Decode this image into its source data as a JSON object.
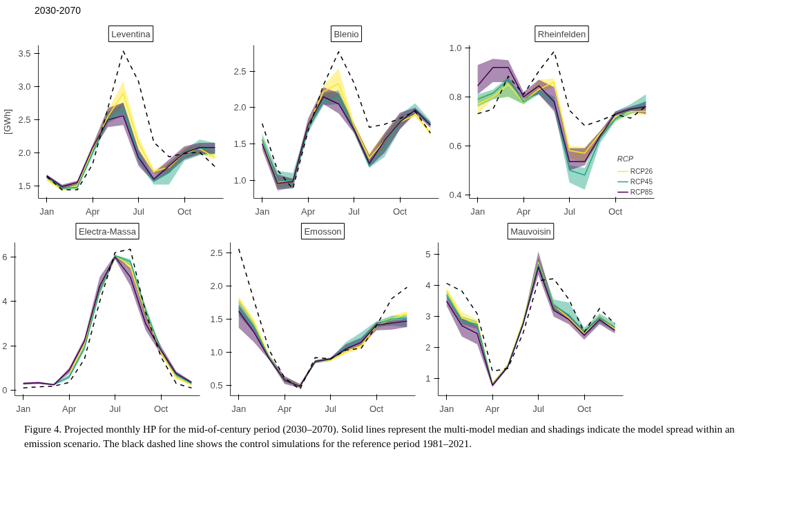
{
  "chart_data": [
    {
      "type": "line",
      "title": "Leventina",
      "ylabel": "[GWh]",
      "annotations": [
        "2030-2070"
      ],
      "grid": false,
      "categories": [
        "Jan",
        null,
        null,
        "Apr",
        null,
        null,
        "Jul",
        null,
        null,
        "Oct",
        null,
        null
      ],
      "ylim": [
        1.31,
        3.63
      ],
      "yticks": [
        1.5,
        {
          "value": 2,
          "label": "2.0"
        },
        2.5,
        {
          "value": 3,
          "label": "3.0"
        },
        3.5
      ],
      "series": [
        {
          "color": "#fde725",
          "values": [
            1.6,
            1.44,
            1.5,
            2.05,
            2.55,
            2.9,
            2.15,
            1.72,
            1.78,
            2.0,
            2.06,
            1.93
          ],
          "lower": [
            1.57,
            1.42,
            1.46,
            2.0,
            2.45,
            2.7,
            2.0,
            1.68,
            1.7,
            1.93,
            1.98,
            1.9
          ],
          "upper": [
            1.66,
            1.48,
            1.55,
            2.1,
            2.65,
            3.08,
            2.25,
            1.75,
            1.85,
            2.08,
            2.12,
            2.0
          ]
        },
        {
          "color": "#21a685",
          "values": [
            1.64,
            1.46,
            1.48,
            2.0,
            2.5,
            2.67,
            1.95,
            1.57,
            1.7,
            1.95,
            2.07,
            2.04
          ],
          "lower": [
            1.61,
            1.44,
            1.45,
            1.95,
            2.45,
            2.58,
            1.85,
            1.52,
            1.52,
            1.88,
            1.96,
            1.98
          ],
          "upper": [
            1.67,
            1.5,
            1.52,
            2.05,
            2.62,
            2.76,
            2.05,
            1.62,
            1.85,
            2.05,
            2.2,
            2.15
          ]
        },
        {
          "color": "#440154",
          "values": [
            1.65,
            1.49,
            1.55,
            2.08,
            2.5,
            2.56,
            1.93,
            1.6,
            1.8,
            2.0,
            2.08,
            2.08
          ],
          "lower": [
            1.62,
            1.46,
            1.52,
            2.03,
            2.39,
            2.42,
            1.8,
            1.56,
            1.7,
            1.9,
            1.98,
            1.99
          ],
          "upper": [
            1.67,
            1.52,
            1.58,
            2.12,
            2.68,
            2.76,
            2.05,
            1.7,
            1.9,
            2.1,
            2.15,
            2.15
          ]
        },
        {
          "color": "#000000",
          "line_style": "dashed",
          "values": [
            1.64,
            1.44,
            1.44,
            1.83,
            2.68,
            3.54,
            3.08,
            2.16,
            1.94,
            1.99,
            2.01,
            1.79
          ]
        }
      ]
    },
    {
      "type": "line",
      "title": "Blenio",
      "grid": false,
      "categories": [
        "Jan",
        null,
        null,
        "Apr",
        null,
        null,
        "Jul",
        null,
        null,
        "Oct",
        null,
        null
      ],
      "ylim": [
        0.75,
        2.86
      ],
      "yticks": [
        {
          "value": 1,
          "label": "1.0"
        },
        1.5,
        {
          "value": 2,
          "label": "2.0"
        },
        2.5
      ],
      "series": [
        {
          "color": "#fde725",
          "values": [
            1.55,
            0.97,
            0.98,
            1.75,
            2.22,
            2.33,
            1.75,
            1.3,
            1.55,
            1.8,
            1.9,
            1.65
          ],
          "lower": [
            1.5,
            0.9,
            0.92,
            1.7,
            2.1,
            2.1,
            1.7,
            1.25,
            1.45,
            1.75,
            1.88,
            1.63
          ],
          "upper": [
            1.6,
            1.05,
            1.03,
            1.8,
            2.3,
            2.54,
            1.8,
            1.38,
            1.65,
            1.9,
            1.95,
            1.68
          ]
        },
        {
          "color": "#21a685",
          "values": [
            1.56,
            1.01,
            0.99,
            1.7,
            2.1,
            2.13,
            1.7,
            1.2,
            1.45,
            1.8,
            1.98,
            1.78
          ],
          "lower": [
            1.5,
            0.88,
            0.88,
            1.65,
            2.03,
            2.05,
            1.65,
            1.17,
            1.32,
            1.7,
            1.93,
            1.74
          ],
          "upper": [
            1.64,
            1.13,
            1.1,
            1.78,
            2.2,
            2.24,
            1.78,
            1.28,
            1.62,
            1.9,
            2.06,
            1.82
          ]
        },
        {
          "color": "#440154",
          "values": [
            1.5,
            0.96,
            0.98,
            1.76,
            2.15,
            2.05,
            1.7,
            1.23,
            1.55,
            1.8,
            1.97,
            1.76
          ],
          "lower": [
            1.42,
            0.86,
            0.9,
            1.7,
            2.05,
            1.92,
            1.65,
            1.18,
            1.38,
            1.7,
            1.92,
            1.72
          ],
          "upper": [
            1.55,
            1.08,
            1.02,
            1.85,
            2.28,
            2.2,
            1.78,
            1.35,
            1.65,
            1.93,
            2.0,
            1.8
          ]
        },
        {
          "color": "#000000",
          "line_style": "dashed",
          "values": [
            1.78,
            1.14,
            0.88,
            1.68,
            2.31,
            2.77,
            2.34,
            1.73,
            1.77,
            1.85,
            1.95,
            1.65
          ]
        }
      ]
    },
    {
      "type": "line",
      "title": "Rheinfelden",
      "grid": false,
      "legend": "bottom right",
      "legend_title": "RCP",
      "categories": [
        "Jan",
        null,
        null,
        "Apr",
        null,
        null,
        "Jul",
        null,
        null,
        "Oct",
        null,
        null
      ],
      "ylim": [
        0.385,
        1.011
      ],
      "yticks": [
        0.4,
        0.6,
        0.8,
        {
          "value": 1,
          "label": "1.0"
        }
      ],
      "series": [
        {
          "name": "RCP26",
          "color": "#fde725",
          "values": [
            0.77,
            0.8,
            0.85,
            0.78,
            0.83,
            0.86,
            0.58,
            0.57,
            0.65,
            0.72,
            0.74,
            0.74
          ],
          "lower": [
            0.73,
            0.79,
            0.8,
            0.77,
            0.82,
            0.84,
            0.55,
            0.53,
            0.63,
            0.7,
            0.73,
            0.725
          ],
          "upper": [
            0.8,
            0.82,
            0.87,
            0.79,
            0.87,
            0.875,
            0.6,
            0.595,
            0.66,
            0.73,
            0.75,
            0.755
          ]
        },
        {
          "name": "RCP45",
          "color": "#21a685",
          "values": [
            0.79,
            0.815,
            0.87,
            0.78,
            0.82,
            0.78,
            0.5,
            0.48,
            0.63,
            0.71,
            0.75,
            0.78
          ],
          "lower": [
            0.76,
            0.79,
            0.8,
            0.77,
            0.81,
            0.75,
            0.45,
            0.42,
            0.61,
            0.7,
            0.73,
            0.75
          ],
          "upper": [
            0.81,
            0.83,
            0.88,
            0.79,
            0.83,
            0.8,
            0.52,
            0.51,
            0.65,
            0.74,
            0.77,
            0.81
          ]
        },
        {
          "name": "RCP85",
          "color": "#440154",
          "values": [
            0.845,
            0.92,
            0.92,
            0.8,
            0.845,
            0.78,
            0.535,
            0.535,
            0.64,
            0.73,
            0.75,
            0.76
          ],
          "lower": [
            0.81,
            0.86,
            0.86,
            0.79,
            0.81,
            0.74,
            0.5,
            0.52,
            0.63,
            0.72,
            0.74,
            0.73
          ],
          "upper": [
            0.93,
            0.955,
            0.95,
            0.82,
            0.87,
            0.84,
            0.59,
            0.59,
            0.66,
            0.74,
            0.76,
            0.78
          ]
        },
        {
          "color": "#000000",
          "line_style": "dashed",
          "values": [
            0.731,
            0.749,
            0.884,
            0.81,
            0.905,
            0.986,
            0.745,
            0.682,
            0.703,
            0.728,
            0.713,
            0.762
          ]
        }
      ]
    },
    {
      "type": "line",
      "title": "Electra-Massa",
      "grid": false,
      "categories": [
        "Jan",
        null,
        null,
        "Apr",
        null,
        null,
        "Jul",
        null,
        null,
        "Oct",
        null,
        null
      ],
      "ylim": [
        -0.25,
        6.65
      ],
      "yticks": [
        0,
        2,
        4,
        6
      ],
      "series": [
        {
          "color": "#fde725",
          "values": [
            null,
            null,
            null,
            0.7,
            2.1,
            4.5,
            6.05,
            5.6,
            3.5,
            1.7,
            0.55,
            0.25
          ],
          "lower": [
            null,
            null,
            null,
            0.6,
            2.0,
            4.3,
            5.95,
            5.4,
            3.2,
            1.6,
            0.5,
            0.2
          ],
          "upper": [
            null,
            null,
            null,
            0.8,
            2.2,
            4.7,
            6.1,
            5.8,
            3.7,
            1.8,
            0.65,
            0.3
          ]
        },
        {
          "color": "#21a685",
          "values": [
            null,
            null,
            0.25,
            0.6,
            1.9,
            4.5,
            6.05,
            5.8,
            3.6,
            1.8,
            0.7,
            0.3
          ],
          "lower": [
            null,
            null,
            0.22,
            0.5,
            1.8,
            4.3,
            5.95,
            5.6,
            3.3,
            1.7,
            0.6,
            0.25
          ],
          "upper": [
            null,
            null,
            0.28,
            0.7,
            2.1,
            4.7,
            6.1,
            5.9,
            3.8,
            1.9,
            0.8,
            0.35
          ]
        },
        {
          "color": "#440154",
          "values": [
            0.3,
            0.33,
            0.25,
            0.9,
            2.2,
            4.7,
            6.0,
            5.1,
            3.0,
            1.8,
            0.75,
            0.35
          ],
          "lower": [
            0.25,
            0.28,
            0.22,
            0.75,
            2.1,
            4.4,
            5.9,
            4.7,
            2.7,
            1.6,
            0.65,
            0.3
          ],
          "upper": [
            0.35,
            0.38,
            0.28,
            1.0,
            2.35,
            5.1,
            6.1,
            5.5,
            3.4,
            2.0,
            0.85,
            0.4
          ]
        },
        {
          "color": "#000000",
          "line_style": "dashed",
          "values": [
            0.1,
            0.15,
            0.18,
            0.35,
            1.4,
            4.0,
            6.2,
            6.35,
            3.5,
            1.5,
            0.3,
            0.1
          ]
        }
      ]
    },
    {
      "type": "line",
      "title": "Emosson",
      "grid": false,
      "categories": [
        "Jan",
        null,
        null,
        "Apr",
        null,
        null,
        "Jul",
        null,
        null,
        "Oct",
        null,
        null
      ],
      "ylim": [
        0.344,
        2.656
      ],
      "yticks": [
        0.5,
        {
          "value": 1,
          "label": "1.0"
        },
        1.5,
        {
          "value": 2,
          "label": "2.0"
        },
        2.5
      ],
      "series": [
        {
          "color": "#fde725",
          "values": [
            1.8,
            1.45,
            0.93,
            0.58,
            0.5,
            0.86,
            0.88,
            1.0,
            1.1,
            1.4,
            1.5,
            1.58
          ],
          "lower": [
            1.72,
            1.38,
            0.9,
            0.55,
            0.48,
            0.84,
            0.86,
            0.98,
            1.05,
            1.35,
            1.45,
            1.55
          ],
          "upper": [
            1.84,
            1.5,
            0.96,
            0.62,
            0.52,
            0.88,
            0.9,
            1.05,
            1.15,
            1.45,
            1.55,
            1.62
          ]
        },
        {
          "color": "#21a685",
          "values": [
            1.66,
            1.38,
            0.92,
            0.58,
            0.49,
            0.86,
            0.89,
            1.08,
            1.2,
            1.42,
            1.5,
            1.52
          ],
          "lower": [
            1.55,
            1.3,
            0.89,
            0.55,
            0.47,
            0.83,
            0.87,
            1.04,
            1.13,
            1.38,
            1.4,
            1.38
          ],
          "upper": [
            1.78,
            1.45,
            0.95,
            0.62,
            0.52,
            0.88,
            0.91,
            1.15,
            1.3,
            1.47,
            1.55,
            1.56
          ]
        },
        {
          "color": "#440154",
          "values": [
            1.62,
            1.3,
            0.9,
            0.58,
            0.49,
            0.86,
            0.9,
            1.05,
            1.15,
            1.41,
            1.44,
            1.47
          ],
          "lower": [
            1.37,
            1.15,
            0.88,
            0.52,
            0.46,
            0.84,
            0.88,
            1.02,
            1.1,
            1.33,
            1.34,
            1.38
          ],
          "upper": [
            1.72,
            1.4,
            0.95,
            0.64,
            0.52,
            0.88,
            0.92,
            1.12,
            1.22,
            1.45,
            1.48,
            1.51
          ]
        },
        {
          "color": "#000000",
          "line_style": "dashed",
          "values": [
            2.56,
            1.78,
            1.03,
            0.61,
            0.44,
            0.92,
            0.9,
            1.03,
            1.06,
            1.4,
            1.81,
            1.98
          ]
        }
      ]
    },
    {
      "type": "line",
      "title": "Mauvoisin",
      "grid": false,
      "annotations": [
        "Figure 4. Projected monthly HP for the mid-of-century period (2030–2070). Solid lines represent the multi-model median and shadings indicate the model spread within an emission scenario. The black dashed line shows the control simulations for the reference period 1981–2021."
      ],
      "categories": [
        "Jan",
        null,
        null,
        "Apr",
        null,
        null,
        "Jul",
        null,
        null,
        "Oct",
        null,
        null
      ],
      "ylim": [
        0.44,
        5.39
      ],
      "yticks": [
        1,
        2,
        3,
        4,
        5
      ],
      "series": [
        {
          "color": "#fde725",
          "values": [
            3.85,
            2.95,
            2.8,
            0.82,
            1.43,
            2.86,
            4.75,
            3.35,
            2.95,
            2.45,
            2.95,
            2.6
          ],
          "lower": [
            3.75,
            2.85,
            2.65,
            0.78,
            1.35,
            2.75,
            4.6,
            3.25,
            2.85,
            2.35,
            2.85,
            2.55
          ],
          "upper": [
            3.92,
            3.15,
            2.9,
            0.88,
            1.47,
            2.9,
            4.9,
            3.45,
            3.05,
            2.55,
            3.05,
            2.7
          ]
        },
        {
          "color": "#21a685",
          "values": [
            3.7,
            2.85,
            2.75,
            0.8,
            1.4,
            2.8,
            4.7,
            3.35,
            3.05,
            2.5,
            2.95,
            2.65
          ],
          "lower": [
            3.6,
            2.75,
            2.6,
            0.75,
            1.35,
            2.75,
            4.5,
            3.2,
            2.9,
            2.35,
            2.8,
            2.55
          ],
          "upper": [
            3.8,
            3.0,
            2.85,
            0.85,
            1.45,
            2.85,
            4.9,
            3.55,
            3.45,
            2.65,
            3.1,
            2.8
          ]
        },
        {
          "color": "#440154",
          "values": [
            3.5,
            2.7,
            2.45,
            0.78,
            1.37,
            2.74,
            4.6,
            3.2,
            2.9,
            2.4,
            2.9,
            2.55
          ],
          "lower": [
            3.35,
            2.35,
            2.1,
            0.72,
            1.33,
            2.7,
            4.35,
            3.0,
            2.75,
            2.25,
            2.75,
            2.45
          ],
          "upper": [
            3.65,
            2.95,
            2.7,
            0.85,
            1.45,
            2.85,
            5.1,
            3.4,
            3.05,
            2.55,
            3.0,
            2.65
          ]
        },
        {
          "color": "#000000",
          "line_style": "dashed",
          "values": [
            4.07,
            3.82,
            3.09,
            1.23,
            1.32,
            2.46,
            4.16,
            4.22,
            3.55,
            2.49,
            3.26,
            2.76
          ]
        }
      ]
    }
  ]
}
